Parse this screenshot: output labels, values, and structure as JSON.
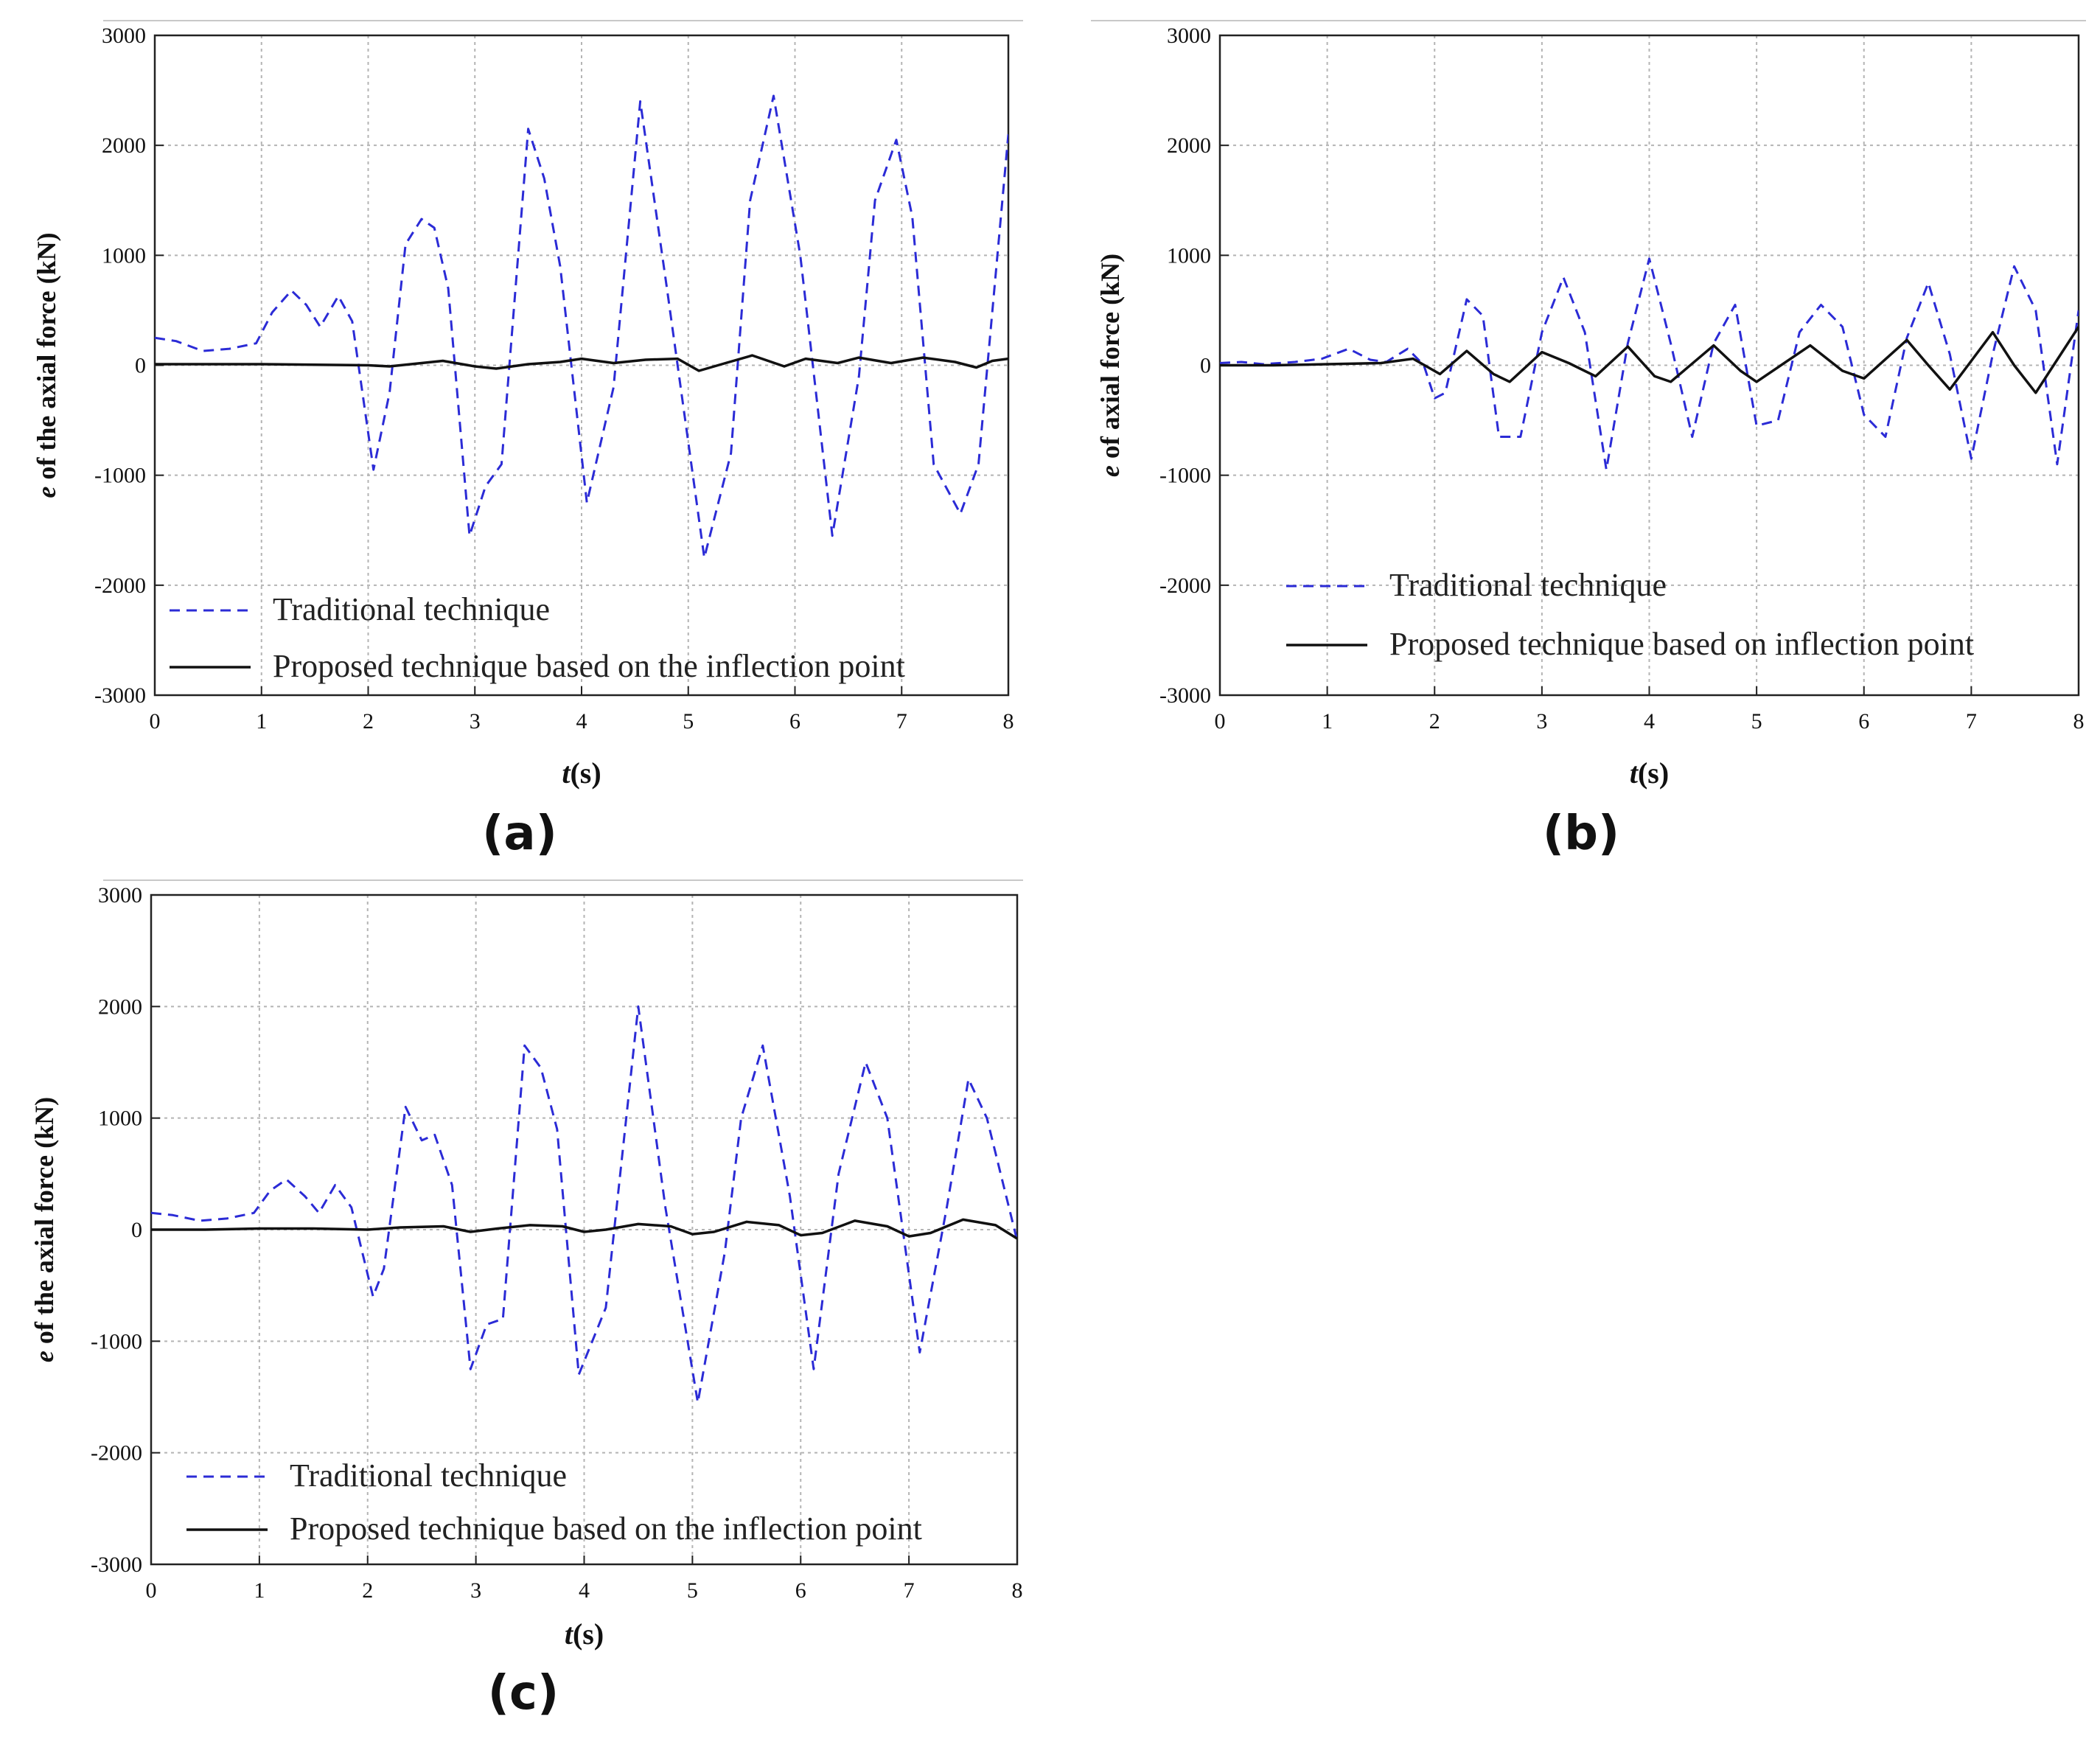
{
  "figure": {
    "panels": [
      {
        "label": "(a)",
        "legend": [
          "Traditional technique",
          "Proposed technique based on the inflection point"
        ]
      },
      {
        "label": "(b)",
        "legend": [
          "Traditional technique",
          "Proposed technique based on inflection point"
        ]
      },
      {
        "label": "(c)",
        "legend": [
          "Traditional technique",
          "Proposed technique based on the inflection point"
        ]
      }
    ]
  },
  "colors": {
    "traditional": "#2b2bd6",
    "proposed": "#111111",
    "grid": "#b4b4b4",
    "axis": "#222222",
    "frame_line": "#c8c8c8"
  },
  "chart_data": [
    {
      "type": "line",
      "panel": "(a)",
      "xlabel_italic": "t",
      "xlabel_rest": "(s)",
      "ylabel_italic": "e",
      "ylabel_rest": " of the axial force (kN)",
      "xlim": [
        0,
        8
      ],
      "ylim": [
        -3000,
        3000
      ],
      "xticks": [
        0,
        1,
        2,
        3,
        4,
        5,
        6,
        7,
        8
      ],
      "yticks": [
        -3000,
        -2000,
        -1000,
        0,
        1000,
        2000,
        3000
      ],
      "grid": true,
      "legend_position": "bottom-left",
      "series": [
        {
          "name": "Traditional technique",
          "style": "dashed",
          "x": [
            0,
            0.2,
            0.45,
            0.7,
            0.95,
            1.1,
            1.28,
            1.42,
            1.55,
            1.72,
            1.85,
            2.05,
            2.2,
            2.35,
            2.5,
            2.62,
            2.75,
            2.95,
            3.1,
            3.25,
            3.5,
            3.65,
            3.8,
            4.05,
            4.3,
            4.55,
            4.8,
            5.15,
            5.4,
            5.58,
            5.8,
            6.05,
            6.35,
            6.6,
            6.75,
            6.95,
            7.1,
            7.3,
            7.55,
            7.72,
            8.0
          ],
          "y": [
            250,
            220,
            130,
            150,
            200,
            480,
            680,
            550,
            350,
            630,
            400,
            -950,
            -250,
            1100,
            1330,
            1250,
            700,
            -1550,
            -1100,
            -900,
            2150,
            1700,
            900,
            -1250,
            -200,
            2400,
            700,
            -1750,
            -800,
            1500,
            2450,
            1000,
            -1550,
            -100,
            1500,
            2050,
            1350,
            -900,
            -1350,
            -900,
            2100
          ]
        },
        {
          "name": "Proposed technique based on the inflection point",
          "style": "solid",
          "x": [
            0,
            0.5,
            1.0,
            1.5,
            2.0,
            2.2,
            2.5,
            2.7,
            3.0,
            3.2,
            3.5,
            3.8,
            4.0,
            4.3,
            4.6,
            4.9,
            5.1,
            5.35,
            5.6,
            5.9,
            6.1,
            6.4,
            6.6,
            6.9,
            7.2,
            7.5,
            7.7,
            7.85,
            8.0
          ],
          "y": [
            10,
            10,
            10,
            5,
            0,
            -10,
            20,
            40,
            -10,
            -30,
            10,
            30,
            60,
            20,
            50,
            60,
            -50,
            20,
            90,
            -10,
            60,
            20,
            70,
            20,
            70,
            30,
            -20,
            40,
            60
          ]
        }
      ]
    },
    {
      "type": "line",
      "panel": "(b)",
      "xlabel_italic": "t",
      "xlabel_rest": "(s)",
      "ylabel_italic": "e",
      "ylabel_rest": " of axial force (kN)",
      "xlim": [
        0,
        8
      ],
      "ylim": [
        -3000,
        3000
      ],
      "xticks": [
        0,
        1,
        2,
        3,
        4,
        5,
        6,
        7,
        8
      ],
      "yticks": [
        -3000,
        -2000,
        -1000,
        0,
        1000,
        2000,
        3000
      ],
      "grid": true,
      "legend_position": "bottom-left",
      "series": [
        {
          "name": "Traditional technique",
          "style": "dashed",
          "x": [
            0,
            0.2,
            0.4,
            0.7,
            0.95,
            1.2,
            1.4,
            1.55,
            1.75,
            1.9,
            2.0,
            2.1,
            2.3,
            2.45,
            2.6,
            2.8,
            3.0,
            3.2,
            3.4,
            3.6,
            3.8,
            4.0,
            4.2,
            4.4,
            4.6,
            4.8,
            5.0,
            5.2,
            5.4,
            5.6,
            5.8,
            6.0,
            6.2,
            6.4,
            6.6,
            6.8,
            7.0,
            7.2,
            7.4,
            7.6,
            7.8,
            8.0
          ],
          "y": [
            20,
            30,
            10,
            30,
            60,
            150,
            50,
            30,
            150,
            0,
            -300,
            -250,
            600,
            450,
            -650,
            -650,
            300,
            800,
            300,
            -950,
            200,
            970,
            200,
            -650,
            200,
            550,
            -550,
            -500,
            300,
            550,
            350,
            -450,
            -650,
            250,
            750,
            100,
            -850,
            100,
            900,
            500,
            -900,
            500
          ]
        },
        {
          "name": "Proposed technique based on inflection point",
          "style": "solid",
          "x": [
            0,
            0.5,
            1.0,
            1.5,
            1.8,
            2.05,
            2.3,
            2.55,
            2.7,
            3.0,
            3.25,
            3.5,
            3.8,
            4.05,
            4.2,
            4.6,
            4.85,
            5.0,
            5.5,
            5.8,
            6.0,
            6.4,
            6.6,
            6.8,
            7.2,
            7.4,
            7.6,
            7.8,
            8.0
          ],
          "y": [
            0,
            0,
            10,
            20,
            60,
            -80,
            130,
            -80,
            -150,
            120,
            20,
            -100,
            170,
            -100,
            -150,
            180,
            -50,
            -150,
            180,
            -50,
            -120,
            230,
            0,
            -220,
            300,
            0,
            -250,
            50,
            350
          ]
        }
      ]
    },
    {
      "type": "line",
      "panel": "(c)",
      "xlabel_italic": "t",
      "xlabel_rest": "(s)",
      "ylabel_italic": "e",
      "ylabel_rest": " of the axial force (kN)",
      "xlim": [
        0,
        8
      ],
      "ylim": [
        -3000,
        3000
      ],
      "xticks": [
        0,
        1,
        2,
        3,
        4,
        5,
        6,
        7,
        8
      ],
      "yticks": [
        -3000,
        -2000,
        -1000,
        0,
        1000,
        2000,
        3000
      ],
      "grid": true,
      "legend_position": "bottom-left",
      "series": [
        {
          "name": "Traditional technique",
          "style": "dashed",
          "x": [
            0,
            0.2,
            0.45,
            0.7,
            0.95,
            1.1,
            1.25,
            1.42,
            1.55,
            1.7,
            1.85,
            2.05,
            2.15,
            2.35,
            2.5,
            2.62,
            2.78,
            2.95,
            3.1,
            3.25,
            3.45,
            3.6,
            3.75,
            3.95,
            4.2,
            4.5,
            4.75,
            5.05,
            5.3,
            5.45,
            5.65,
            5.9,
            6.12,
            6.35,
            6.6,
            6.8,
            7.1,
            7.35,
            7.55,
            7.72,
            8.0
          ],
          "y": [
            150,
            130,
            80,
            100,
            150,
            350,
            450,
            300,
            150,
            400,
            200,
            -600,
            -350,
            1100,
            800,
            850,
            400,
            -1250,
            -850,
            -800,
            1650,
            1450,
            900,
            -1300,
            -700,
            2000,
            200,
            -1550,
            -200,
            1000,
            1650,
            300,
            -1250,
            500,
            1500,
            1000,
            -1100,
            200,
            1350,
            1000,
            -100
          ]
        },
        {
          "name": "Proposed technique based on the inflection point",
          "style": "solid",
          "x": [
            0,
            0.5,
            1.0,
            1.5,
            2.0,
            2.3,
            2.7,
            2.95,
            3.2,
            3.5,
            3.8,
            4.0,
            4.2,
            4.5,
            4.8,
            5.0,
            5.2,
            5.5,
            5.8,
            6.0,
            6.2,
            6.5,
            6.8,
            7.0,
            7.2,
            7.5,
            7.8,
            8.0
          ],
          "y": [
            0,
            0,
            10,
            10,
            0,
            20,
            30,
            -20,
            10,
            40,
            30,
            -20,
            0,
            50,
            30,
            -40,
            -20,
            70,
            40,
            -50,
            -30,
            80,
            30,
            -60,
            -30,
            90,
            40,
            -80
          ]
        }
      ]
    }
  ]
}
